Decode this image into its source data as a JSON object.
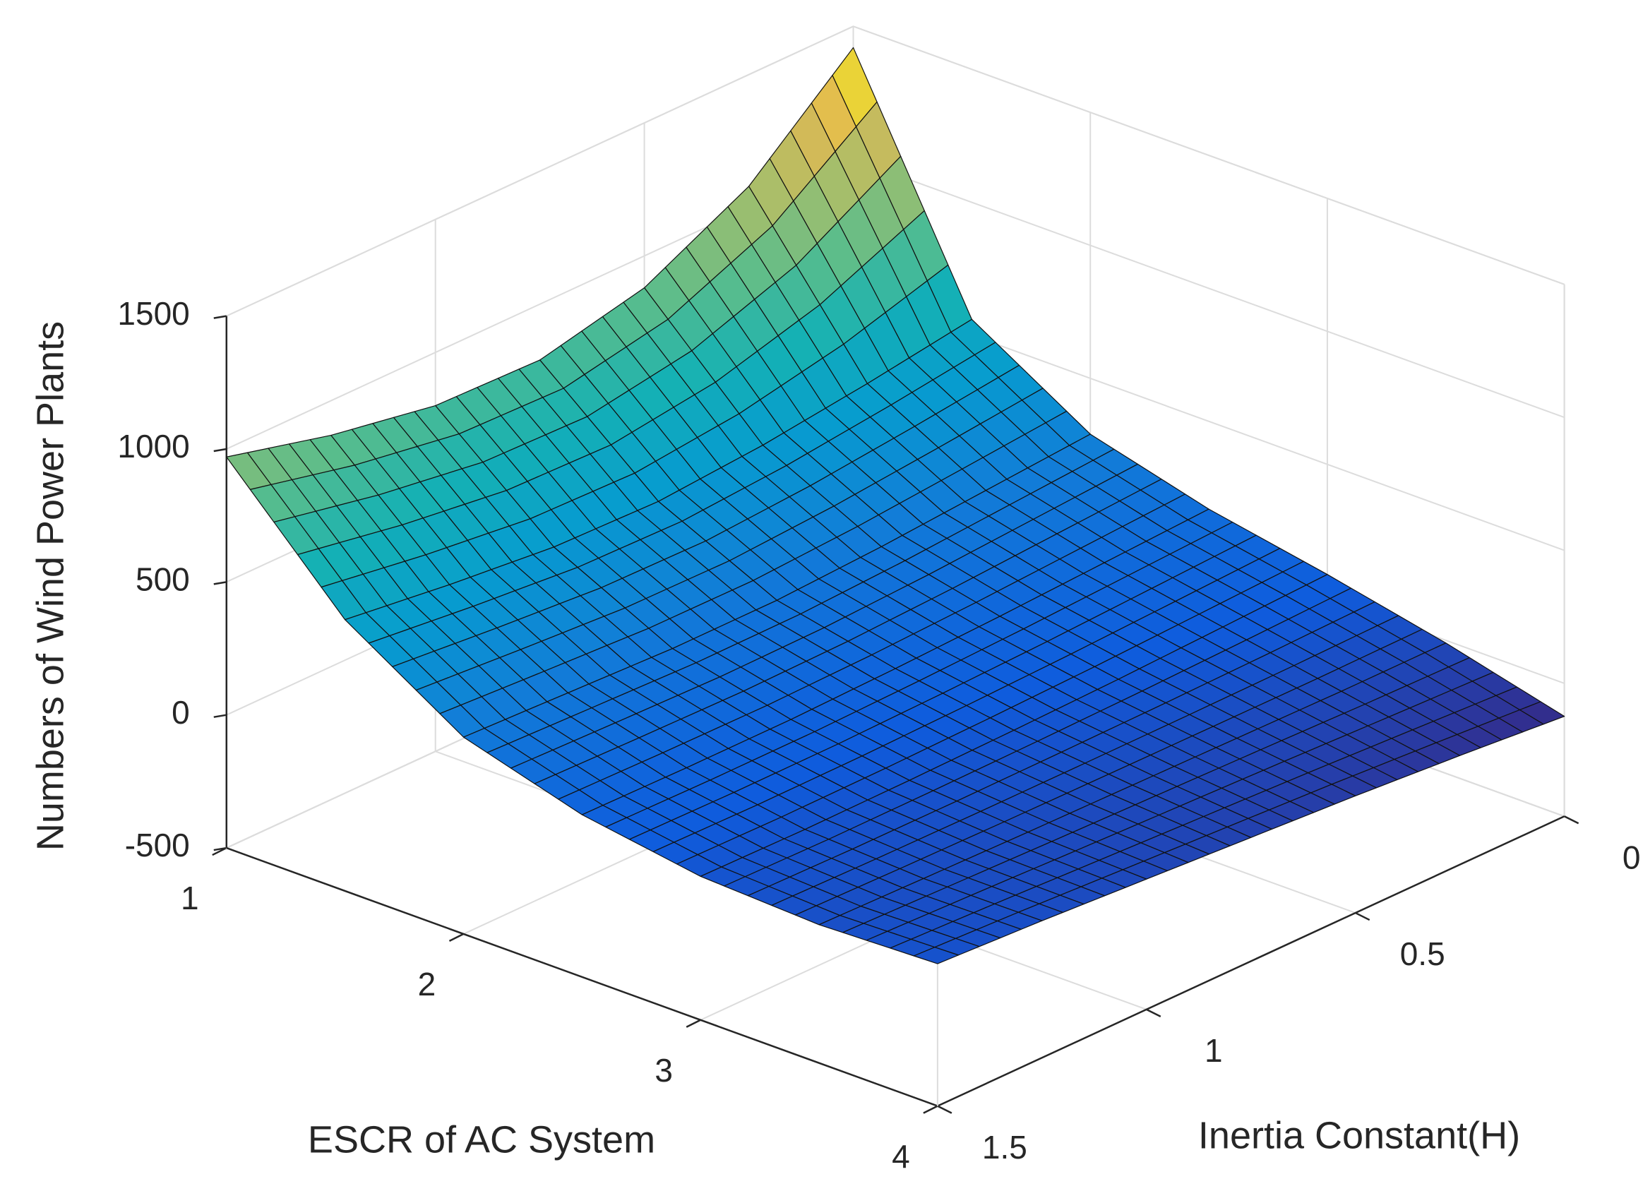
{
  "chart_data": {
    "type": "surface",
    "xlabel": "ESCR of AC System",
    "ylabel": "Inertia Constant(H)",
    "zlabel": "Numbers of Wind Power Plants",
    "x": [
      1,
      1.5,
      2,
      2.5,
      3,
      3.5,
      4
    ],
    "y": [
      0,
      0.25,
      0.5,
      0.75,
      1,
      1.25,
      1.5
    ],
    "z": [
      [
        1420,
        1080,
        880,
        790,
        800,
        870,
        970
      ],
      [
        560,
        500,
        450,
        420,
        430,
        470,
        520
      ],
      [
        290,
        260,
        230,
        210,
        210,
        225,
        240
      ],
      [
        170,
        150,
        130,
        115,
        105,
        105,
        110
      ],
      [
        86,
        70,
        55,
        45,
        38,
        35,
        40
      ],
      [
        -10,
        -10,
        -5,
        0,
        5,
        12,
        20
      ],
      [
        -124,
        -90,
        -60,
        -35,
        -10,
        15,
        35
      ]
    ],
    "xlim": [
      1,
      4
    ],
    "xticks": [
      1,
      2,
      3,
      4
    ],
    "ylim": [
      0,
      1.5
    ],
    "yticks": [
      0,
      0.5,
      1,
      1.5
    ],
    "zlim": [
      -500,
      1500
    ],
    "zticks": [
      -500,
      0,
      500,
      1000,
      1500
    ],
    "grid": true,
    "colormap": [
      "#352a87",
      "#0f5cdd",
      "#127dd8",
      "#079ccf",
      "#15b1b4",
      "#59bd8c",
      "#a5be6b",
      "#e1b952",
      "#f9fb0e"
    ]
  }
}
